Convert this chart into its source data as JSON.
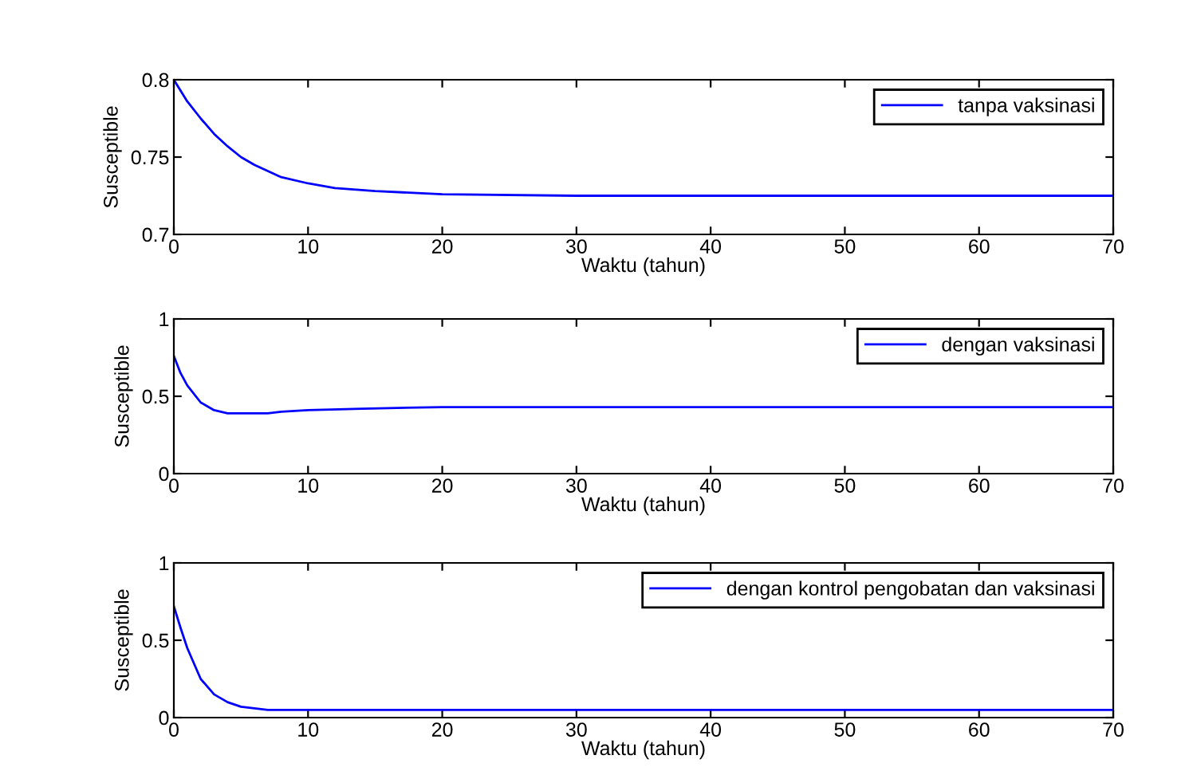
{
  "chart_data": [
    {
      "type": "line",
      "xlabel": "Waktu (tahun)",
      "ylabel": "Susceptible",
      "legend": "top right",
      "xlim": [
        0,
        70
      ],
      "xticks": [
        0,
        10,
        20,
        30,
        40,
        50,
        60,
        70
      ],
      "ylim": [
        0.7,
        0.8
      ],
      "yticks": [
        0.7,
        0.75,
        0.8
      ],
      "series": [
        {
          "name": "tanpa vaksinasi",
          "color": "#0000ff",
          "x": [
            0,
            1,
            2,
            3,
            4,
            5,
            6,
            8,
            10,
            12,
            15,
            20,
            30,
            40,
            50,
            60,
            70
          ],
          "values": [
            0.8,
            0.786,
            0.775,
            0.765,
            0.757,
            0.75,
            0.745,
            0.737,
            0.733,
            0.73,
            0.728,
            0.726,
            0.725,
            0.725,
            0.725,
            0.725,
            0.725
          ]
        }
      ]
    },
    {
      "type": "line",
      "xlabel": "Waktu (tahun)",
      "ylabel": "Susceptible",
      "legend": "top right",
      "xlim": [
        0,
        70
      ],
      "xticks": [
        0,
        10,
        20,
        30,
        40,
        50,
        60,
        70
      ],
      "ylim": [
        0,
        1
      ],
      "yticks": [
        0,
        0.5,
        1
      ],
      "series": [
        {
          "name": "dengan vaksinasi",
          "color": "#0000ff",
          "x": [
            0,
            0.5,
            1,
            2,
            3,
            4,
            5,
            7,
            8,
            10,
            14,
            20,
            30,
            40,
            50,
            60,
            70
          ],
          "values": [
            0.76,
            0.65,
            0.57,
            0.46,
            0.41,
            0.39,
            0.39,
            0.39,
            0.4,
            0.41,
            0.42,
            0.43,
            0.43,
            0.43,
            0.43,
            0.43,
            0.43
          ]
        }
      ]
    },
    {
      "type": "line",
      "xlabel": "Waktu (tahun)",
      "ylabel": "Susceptible",
      "legend": "top right",
      "xlim": [
        0,
        70
      ],
      "xticks": [
        0,
        10,
        20,
        30,
        40,
        50,
        60,
        70
      ],
      "ylim": [
        0,
        1
      ],
      "yticks": [
        0,
        0.5,
        1
      ],
      "series": [
        {
          "name": "dengan kontrol pengobatan dan vaksinasi",
          "color": "#0000ff",
          "x": [
            0,
            0.5,
            1,
            2,
            3,
            4,
            5,
            7,
            10,
            20,
            30,
            40,
            50,
            60,
            70
          ],
          "values": [
            0.72,
            0.58,
            0.45,
            0.25,
            0.15,
            0.1,
            0.07,
            0.05,
            0.05,
            0.05,
            0.05,
            0.05,
            0.05,
            0.05,
            0.05
          ]
        }
      ]
    }
  ]
}
